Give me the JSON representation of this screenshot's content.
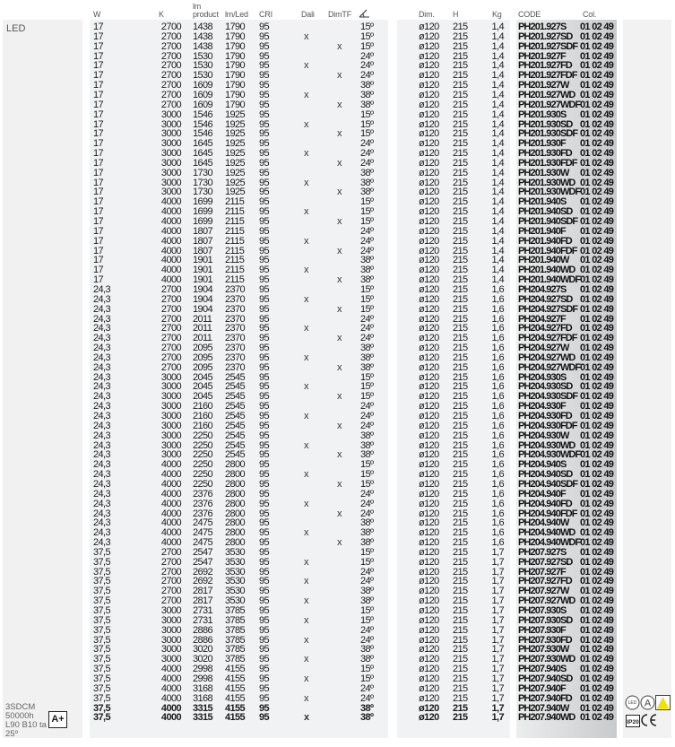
{
  "headers": {
    "w": "W",
    "k": "K",
    "lm_line1": "lm",
    "lm_line2": "product",
    "lm_led": "lm/Led",
    "cri": "CRI",
    "dali": "Dali",
    "dimtf": "DimTF",
    "angle_icon": "beam-angle-icon",
    "dim": "Dim.",
    "h": "H",
    "kg": "Kg",
    "code": "CODE",
    "col": "Col."
  },
  "left": {
    "type": "LED",
    "specs": [
      "3SDCM",
      "50000h",
      "L90 B10 ta",
      "25º"
    ],
    "energy_class": "A+"
  },
  "right_icons": [
    "led-symbol-icon",
    "a-symbol-icon",
    "warning-triangle-icon",
    "ip20-icon",
    "ce-mark-icon"
  ],
  "colors": {
    "code_column": "#c9cacc",
    "panel": "#f1f2f4",
    "warning": "#f5e100"
  },
  "rows": [
    [
      "17",
      "2700",
      "1438",
      "1790",
      "95",
      "",
      "",
      "15º",
      "ø120",
      "215",
      "1,4",
      "PH201.927S",
      "01 02 49"
    ],
    [
      "17",
      "2700",
      "1438",
      "1790",
      "95",
      "x",
      "",
      "15º",
      "ø120",
      "215",
      "1,4",
      "PH201.927SD",
      "01 02 49"
    ],
    [
      "17",
      "2700",
      "1438",
      "1790",
      "95",
      "",
      "x",
      "15º",
      "ø120",
      "215",
      "1,4",
      "PH201.927SDF",
      "01 02 49"
    ],
    [
      "17",
      "2700",
      "1530",
      "1790",
      "95",
      "",
      "",
      "24º",
      "ø120",
      "215",
      "1,4",
      "PH201.927F",
      "01 02 49"
    ],
    [
      "17",
      "2700",
      "1530",
      "1790",
      "95",
      "x",
      "",
      "24º",
      "ø120",
      "215",
      "1,4",
      "PH201.927FD",
      "01 02 49"
    ],
    [
      "17",
      "2700",
      "1530",
      "1790",
      "95",
      "",
      "x",
      "24º",
      "ø120",
      "215",
      "1,4",
      "PH201.927FDF",
      "01 02 49"
    ],
    [
      "17",
      "2700",
      "1609",
      "1790",
      "95",
      "",
      "",
      "38º",
      "ø120",
      "215",
      "1,4",
      "PH201.927W",
      "01 02 49"
    ],
    [
      "17",
      "2700",
      "1609",
      "1790",
      "95",
      "x",
      "",
      "38º",
      "ø120",
      "215",
      "1,4",
      "PH201.927WD",
      "01 02 49"
    ],
    [
      "17",
      "2700",
      "1609",
      "1790",
      "95",
      "",
      "x",
      "38º",
      "ø120",
      "215",
      "1,4",
      "PH201.927WDF",
      "01 02 49"
    ],
    [
      "17",
      "3000",
      "1546",
      "1925",
      "95",
      "",
      "",
      "15º",
      "ø120",
      "215",
      "1,4",
      "PH201.930S",
      "01 02 49"
    ],
    [
      "17",
      "3000",
      "1546",
      "1925",
      "95",
      "x",
      "",
      "15º",
      "ø120",
      "215",
      "1,4",
      "PH201.930SD",
      "01 02 49"
    ],
    [
      "17",
      "3000",
      "1546",
      "1925",
      "95",
      "",
      "x",
      "15º",
      "ø120",
      "215",
      "1,4",
      "PH201.930SDF",
      "01 02 49"
    ],
    [
      "17",
      "3000",
      "1645",
      "1925",
      "95",
      "",
      "",
      "24º",
      "ø120",
      "215",
      "1,4",
      "PH201.930F",
      "01 02 49"
    ],
    [
      "17",
      "3000",
      "1645",
      "1925",
      "95",
      "x",
      "",
      "24º",
      "ø120",
      "215",
      "1,4",
      "PH201.930FD",
      "01 02 49"
    ],
    [
      "17",
      "3000",
      "1645",
      "1925",
      "95",
      "",
      "x",
      "24º",
      "ø120",
      "215",
      "1,4",
      "PH201.930FDF",
      "01 02 49"
    ],
    [
      "17",
      "3000",
      "1730",
      "1925",
      "95",
      "",
      "",
      "38º",
      "ø120",
      "215",
      "1,4",
      "PH201.930W",
      "01 02 49"
    ],
    [
      "17",
      "3000",
      "1730",
      "1925",
      "95",
      "x",
      "",
      "38º",
      "ø120",
      "215",
      "1,4",
      "PH201.930WD",
      "01 02 49"
    ],
    [
      "17",
      "3000",
      "1730",
      "1925",
      "95",
      "",
      "x",
      "38º",
      "ø120",
      "215",
      "1,4",
      "PH201.930WDF",
      "01 02 49"
    ],
    [
      "17",
      "4000",
      "1699",
      "2115",
      "95",
      "",
      "",
      "15º",
      "ø120",
      "215",
      "1,4",
      "PH201.940S",
      "01 02 49"
    ],
    [
      "17",
      "4000",
      "1699",
      "2115",
      "95",
      "x",
      "",
      "15º",
      "ø120",
      "215",
      "1,4",
      "PH201.940SD",
      "01 02 49"
    ],
    [
      "17",
      "4000",
      "1699",
      "2115",
      "95",
      "",
      "x",
      "15º",
      "ø120",
      "215",
      "1,4",
      "PH201.940SDF",
      "01 02 49"
    ],
    [
      "17",
      "4000",
      "1807",
      "2115",
      "95",
      "",
      "",
      "24º",
      "ø120",
      "215",
      "1,4",
      "PH201.940F",
      "01 02 49"
    ],
    [
      "17",
      "4000",
      "1807",
      "2115",
      "95",
      "x",
      "",
      "24º",
      "ø120",
      "215",
      "1,4",
      "PH201.940FD",
      "01 02 49"
    ],
    [
      "17",
      "4000",
      "1807",
      "2115",
      "95",
      "",
      "x",
      "24º",
      "ø120",
      "215",
      "1,4",
      "PH201.940FDF",
      "01 02 49"
    ],
    [
      "17",
      "4000",
      "1901",
      "2115",
      "95",
      "",
      "",
      "38º",
      "ø120",
      "215",
      "1,4",
      "PH201.940W",
      "01 02 49"
    ],
    [
      "17",
      "4000",
      "1901",
      "2115",
      "95",
      "x",
      "",
      "38º",
      "ø120",
      "215",
      "1,4",
      "PH201.940WD",
      "01 02 49"
    ],
    [
      "17",
      "4000",
      "1901",
      "2115",
      "95",
      "",
      "x",
      "38º",
      "ø120",
      "215",
      "1,4",
      "PH201.940WDF",
      "01 02 49"
    ],
    [
      "24,3",
      "2700",
      "1904",
      "2370",
      "95",
      "",
      "",
      "15º",
      "ø120",
      "215",
      "1,6",
      "PH204.927S",
      "01 02 49"
    ],
    [
      "24,3",
      "2700",
      "1904",
      "2370",
      "95",
      "x",
      "",
      "15º",
      "ø120",
      "215",
      "1,6",
      "PH204.927SD",
      "01 02 49"
    ],
    [
      "24,3",
      "2700",
      "1904",
      "2370",
      "95",
      "",
      "x",
      "15º",
      "ø120",
      "215",
      "1,6",
      "PH204.927SDF",
      "01 02 49"
    ],
    [
      "24,3",
      "2700",
      "2011",
      "2370",
      "95",
      "",
      "",
      "24º",
      "ø120",
      "215",
      "1,6",
      "PH204.927F",
      "01 02 49"
    ],
    [
      "24,3",
      "2700",
      "2011",
      "2370",
      "95",
      "x",
      "",
      "24º",
      "ø120",
      "215",
      "1,6",
      "PH204.927FD",
      "01 02 49"
    ],
    [
      "24,3",
      "2700",
      "2011",
      "2370",
      "95",
      "",
      "x",
      "24º",
      "ø120",
      "215",
      "1,6",
      "PH204.927FDF",
      "01 02 49"
    ],
    [
      "24,3",
      "2700",
      "2095",
      "2370",
      "95",
      "",
      "",
      "38º",
      "ø120",
      "215",
      "1,6",
      "PH204.927W",
      "01 02 49"
    ],
    [
      "24,3",
      "2700",
      "2095",
      "2370",
      "95",
      "x",
      "",
      "38º",
      "ø120",
      "215",
      "1,6",
      "PH204.927WD",
      "01 02 49"
    ],
    [
      "24,3",
      "2700",
      "2095",
      "2370",
      "95",
      "",
      "x",
      "38º",
      "ø120",
      "215",
      "1,6",
      "PH204.927WDF",
      "01 02 49"
    ],
    [
      "24,3",
      "3000",
      "2045",
      "2545",
      "95",
      "",
      "",
      "15º",
      "ø120",
      "215",
      "1,6",
      "PH204.930S",
      "01 02 49"
    ],
    [
      "24,3",
      "3000",
      "2045",
      "2545",
      "95",
      "x",
      "",
      "15º",
      "ø120",
      "215",
      "1,6",
      "PH204.930SD",
      "01 02 49"
    ],
    [
      "24,3",
      "3000",
      "2045",
      "2545",
      "95",
      "",
      "x",
      "15º",
      "ø120",
      "215",
      "1,6",
      "PH204.930SDF",
      "01 02 49"
    ],
    [
      "24,3",
      "3000",
      "2160",
      "2545",
      "95",
      "",
      "",
      "24º",
      "ø120",
      "215",
      "1,6",
      "PH204.930F",
      "01 02 49"
    ],
    [
      "24,3",
      "3000",
      "2160",
      "2545",
      "95",
      "x",
      "",
      "24º",
      "ø120",
      "215",
      "1,6",
      "PH204.930FD",
      "01 02 49"
    ],
    [
      "24,3",
      "3000",
      "2160",
      "2545",
      "95",
      "",
      "x",
      "24º",
      "ø120",
      "215",
      "1,6",
      "PH204.930FDF",
      "01 02 49"
    ],
    [
      "24,3",
      "3000",
      "2250",
      "2545",
      "95",
      "",
      "",
      "38º",
      "ø120",
      "215",
      "1,6",
      "PH204.930W",
      "01 02 49"
    ],
    [
      "24,3",
      "3000",
      "2250",
      "2545",
      "95",
      "x",
      "",
      "38º",
      "ø120",
      "215",
      "1,6",
      "PH204.930WD",
      "01 02 49"
    ],
    [
      "24,3",
      "3000",
      "2250",
      "2545",
      "95",
      "",
      "x",
      "38º",
      "ø120",
      "215",
      "1,6",
      "PH204.930WDF",
      "01 02 49"
    ],
    [
      "24,3",
      "4000",
      "2250",
      "2800",
      "95",
      "",
      "",
      "15º",
      "ø120",
      "215",
      "1,6",
      "PH204.940S",
      "01 02 49"
    ],
    [
      "24,3",
      "4000",
      "2250",
      "2800",
      "95",
      "x",
      "",
      "15º",
      "ø120",
      "215",
      "1,6",
      "PH204.940SD",
      "01 02 49"
    ],
    [
      "24,3",
      "4000",
      "2250",
      "2800",
      "95",
      "",
      "x",
      "15º",
      "ø120",
      "215",
      "1,6",
      "PH204.940SDF",
      "01 02 49"
    ],
    [
      "24,3",
      "4000",
      "2376",
      "2800",
      "95",
      "",
      "",
      "24º",
      "ø120",
      "215",
      "1,6",
      "PH204.940F",
      "01 02 49"
    ],
    [
      "24,3",
      "4000",
      "2376",
      "2800",
      "95",
      "x",
      "",
      "24º",
      "ø120",
      "215",
      "1,6",
      "PH204.940FD",
      "01 02 49"
    ],
    [
      "24,3",
      "4000",
      "2376",
      "2800",
      "95",
      "",
      "x",
      "24º",
      "ø120",
      "215",
      "1,6",
      "PH204.940FDF",
      "01 02 49"
    ],
    [
      "24,3",
      "4000",
      "2475",
      "2800",
      "95",
      "",
      "",
      "38º",
      "ø120",
      "215",
      "1,6",
      "PH204.940W",
      "01 02 49"
    ],
    [
      "24,3",
      "4000",
      "2475",
      "2800",
      "95",
      "x",
      "",
      "38º",
      "ø120",
      "215",
      "1,6",
      "PH204.940WD",
      "01 02 49"
    ],
    [
      "24,3",
      "4000",
      "2475",
      "2800",
      "95",
      "",
      "x",
      "38º",
      "ø120",
      "215",
      "1,6",
      "PH204.940WDF",
      "01 02 49"
    ],
    [
      "37,5",
      "2700",
      "2547",
      "3530",
      "95",
      "",
      "",
      "15º",
      "ø120",
      "215",
      "1,7",
      "PH207.927S",
      "01 02 49"
    ],
    [
      "37,5",
      "2700",
      "2547",
      "3530",
      "95",
      "x",
      "",
      "15º",
      "ø120",
      "215",
      "1,7",
      "PH207.927SD",
      "01 02 49"
    ],
    [
      "37,5",
      "2700",
      "2692",
      "3530",
      "95",
      "",
      "",
      "24º",
      "ø120",
      "215",
      "1,7",
      "PH207.927F",
      "01 02 49"
    ],
    [
      "37,5",
      "2700",
      "2692",
      "3530",
      "95",
      "x",
      "",
      "24º",
      "ø120",
      "215",
      "1,7",
      "PH207.927FD",
      "01 02 49"
    ],
    [
      "37,5",
      "2700",
      "2817",
      "3530",
      "95",
      "",
      "",
      "38º",
      "ø120",
      "215",
      "1,7",
      "PH207.927W",
      "01 02 49"
    ],
    [
      "37,5",
      "2700",
      "2817",
      "3530",
      "95",
      "x",
      "",
      "38º",
      "ø120",
      "215",
      "1,7",
      "PH207.927WD",
      "01 02 49"
    ],
    [
      "37,5",
      "3000",
      "2731",
      "3785",
      "95",
      "",
      "",
      "15º",
      "ø120",
      "215",
      "1,7",
      "PH207.930S",
      "01 02 49"
    ],
    [
      "37,5",
      "3000",
      "2731",
      "3785",
      "95",
      "x",
      "",
      "15º",
      "ø120",
      "215",
      "1,7",
      "PH207.930SD",
      "01 02 49"
    ],
    [
      "37,5",
      "3000",
      "2886",
      "3785",
      "95",
      "",
      "",
      "24º",
      "ø120",
      "215",
      "1,7",
      "PH207.930F",
      "01 02 49"
    ],
    [
      "37,5",
      "3000",
      "2886",
      "3785",
      "95",
      "x",
      "",
      "24º",
      "ø120",
      "215",
      "1,7",
      "PH207.930FD",
      "01 02 49"
    ],
    [
      "37,5",
      "3000",
      "3020",
      "3785",
      "95",
      "",
      "",
      "38º",
      "ø120",
      "215",
      "1,7",
      "PH207.930W",
      "01 02 49"
    ],
    [
      "37,5",
      "3000",
      "3020",
      "3785",
      "95",
      "x",
      "",
      "38º",
      "ø120",
      "215",
      "1,7",
      "PH207.930WD",
      "01 02 49"
    ],
    [
      "37,5",
      "4000",
      "2998",
      "4155",
      "95",
      "",
      "",
      "15º",
      "ø120",
      "215",
      "1,7",
      "PH207.940S",
      "01 02 49"
    ],
    [
      "37,5",
      "4000",
      "2998",
      "4155",
      "95",
      "x",
      "",
      "15º",
      "ø120",
      "215",
      "1,7",
      "PH207.940SD",
      "01 02 49"
    ],
    [
      "37,5",
      "4000",
      "3168",
      "4155",
      "95",
      "",
      "",
      "24º",
      "ø120",
      "215",
      "1,7",
      "PH207.940F",
      "01 02 49"
    ],
    [
      "37,5",
      "4000",
      "3168",
      "4155",
      "95",
      "x",
      "",
      "24º",
      "ø120",
      "215",
      "1,7",
      "PH207.940FD",
      "01 02 49"
    ],
    [
      "37,5",
      "4000",
      "3315",
      "4155",
      "95",
      "",
      "",
      "38º",
      "ø120",
      "215",
      "1,7",
      "PH207.940W",
      "01 02 49"
    ],
    [
      "37,5",
      "4000",
      "3315",
      "4155",
      "95",
      "x",
      "",
      "38º",
      "ø120",
      "215",
      "1,7",
      "PH207.940WD",
      "01 02 49"
    ]
  ]
}
